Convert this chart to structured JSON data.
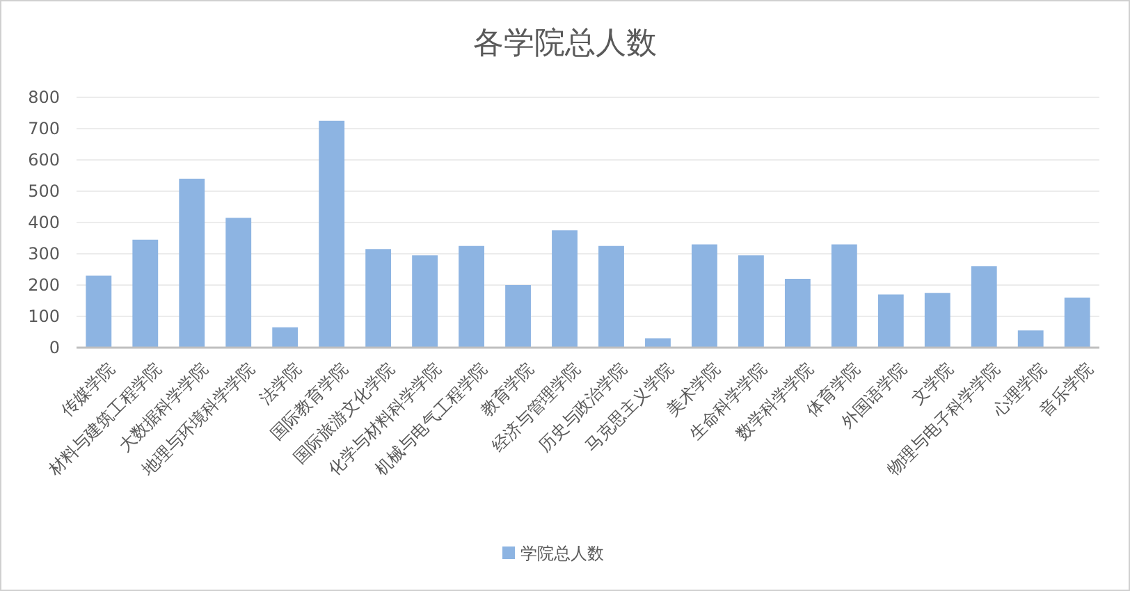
{
  "chart_data": {
    "type": "bar",
    "title": "各学院总人数",
    "categories": [
      "传媒学院",
      "材料与建筑工程学院",
      "大数据科学学院",
      "地理与环境科学学院",
      "法学院",
      "国际教育学院",
      "国际旅游文化学院",
      "化学与材料科学学院",
      "机械与电气工程学院",
      "教育学院",
      "经济与管理学院",
      "历史与政治学院",
      "马克思主义学院",
      "美术学院",
      "生命科学学院",
      "数学科学学院",
      "体育学院",
      "外国语学院",
      "文学院",
      "物理与电子科学学院",
      "心理学院",
      "音乐学院"
    ],
    "series": [
      {
        "name": "学院总人数",
        "color": "#8db4e2",
        "values": [
          230,
          345,
          540,
          415,
          65,
          725,
          315,
          295,
          325,
          200,
          375,
          325,
          30,
          330,
          295,
          220,
          330,
          170,
          175,
          260,
          55,
          160
        ]
      }
    ],
    "ylim": [
      0,
      800
    ],
    "yticks": [
      0,
      100,
      200,
      300,
      400,
      500,
      600,
      700,
      800
    ],
    "grid": "y",
    "legend": "bottom"
  }
}
